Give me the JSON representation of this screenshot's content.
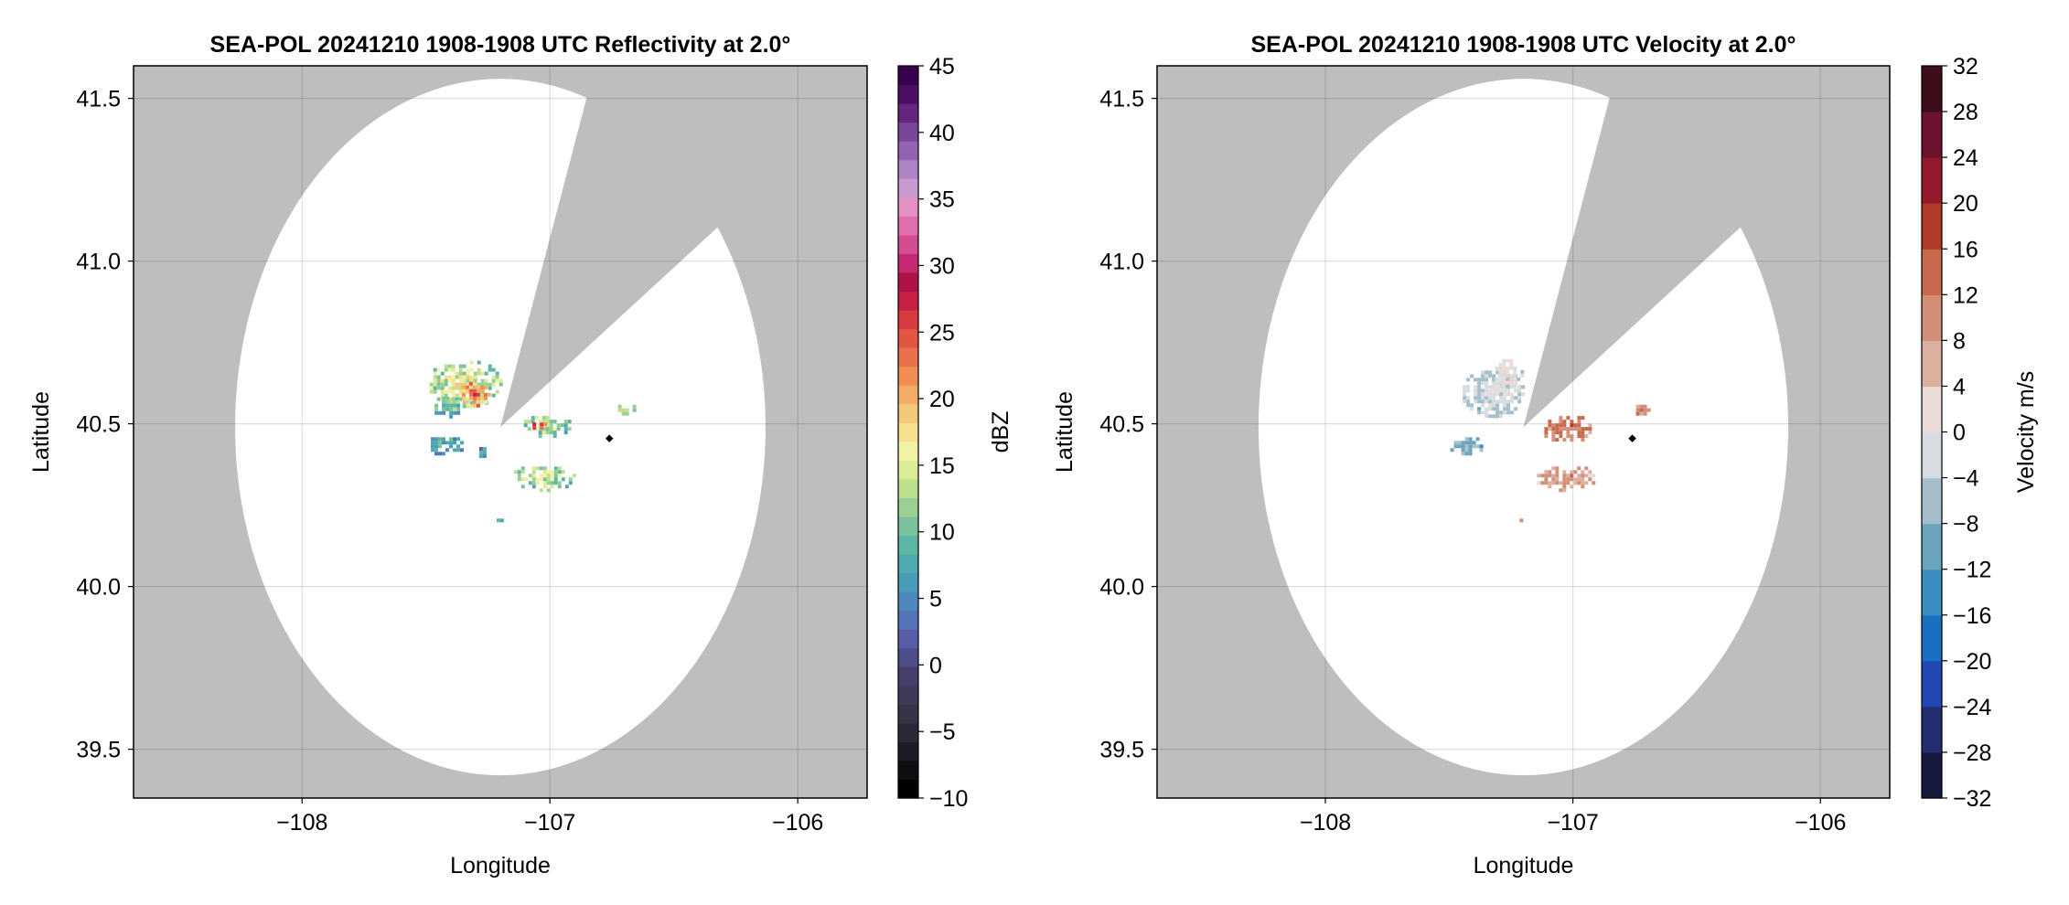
{
  "chart_data": [
    {
      "type": "heatmap",
      "title": "SEA-POL 20241210 1908-1908 UTC Reflectivity at 2.0°",
      "xlabel": "Longitude",
      "ylabel": "Latitude",
      "xlim": [
        -108.68,
        -105.72
      ],
      "ylim": [
        39.35,
        41.6
      ],
      "xticks": [
        -108,
        -107,
        -106
      ],
      "xtick_labels": [
        "−108",
        "−107",
        "−106"
      ],
      "yticks": [
        39.5,
        40.0,
        40.5,
        41.0,
        41.5
      ],
      "ytick_labels": [
        "39.5",
        "40.0",
        "40.5",
        "41.0",
        "41.5"
      ],
      "grid": true,
      "background_color": "#bebebe",
      "coverage_color": "#ffffff",
      "radar_center": {
        "lon": -107.2,
        "lat": 40.49
      },
      "coverage_radius_deg": 1.07,
      "blocked_sector_bearings_deg": [
        19,
        55
      ],
      "marker": {
        "lon": -106.76,
        "lat": 40.455
      },
      "colorbar": {
        "label": "dBZ",
        "min": -10,
        "max": 45,
        "ticks": [
          -10,
          -5,
          0,
          5,
          10,
          15,
          20,
          25,
          30,
          35,
          40,
          45
        ],
        "tick_labels": [
          "−10",
          "−5",
          "0",
          "5",
          "10",
          "15",
          "20",
          "25",
          "30",
          "35",
          "40",
          "45"
        ],
        "colors": [
          "#000000",
          "#0d0d12",
          "#1c1b26",
          "#2a2936",
          "#363446",
          "#3e3a58",
          "#463f6e",
          "#4e4c8a",
          "#5a5ea8",
          "#5673b8",
          "#4e88bc",
          "#4a9bb8",
          "#4caab0",
          "#5db5a4",
          "#7bc29c",
          "#9bd094",
          "#bde08e",
          "#dbec96",
          "#f2f2a6",
          "#f6e08e",
          "#f5c778",
          "#f3ac64",
          "#ef8d52",
          "#e9704a",
          "#e25542",
          "#d83b40",
          "#c81f44",
          "#ad1348",
          "#c32a72",
          "#d44c92",
          "#e070ab",
          "#e590c4",
          "#c99ad2",
          "#ae84c6",
          "#9163b0",
          "#7a4699",
          "#63257f",
          "#4b0e63",
          "#36024e"
        ]
      },
      "echo_cells": [
        {
          "lon": -107.35,
          "lat": 40.63,
          "rlon": 0.15,
          "rlat": 0.075,
          "value": 12
        },
        {
          "lon": -107.31,
          "lat": 40.6,
          "rlon": 0.06,
          "rlat": 0.04,
          "value": 20
        },
        {
          "lon": -107.42,
          "lat": 40.56,
          "rlon": 0.06,
          "rlat": 0.035,
          "value": 8
        },
        {
          "lon": -107.02,
          "lat": 40.5,
          "rlon": 0.1,
          "rlat": 0.035,
          "value": 10
        },
        {
          "lon": -107.05,
          "lat": 40.5,
          "rlon": 0.035,
          "rlat": 0.015,
          "value": 25
        },
        {
          "lon": -107.43,
          "lat": 40.44,
          "rlon": 0.08,
          "rlat": 0.03,
          "value": 5
        },
        {
          "lon": -107.03,
          "lat": 40.34,
          "rlon": 0.13,
          "rlat": 0.04,
          "value": 11
        },
        {
          "lon": -106.7,
          "lat": 40.55,
          "rlon": 0.04,
          "rlat": 0.02,
          "value": 13
        },
        {
          "lon": -107.21,
          "lat": 40.21,
          "rlon": 0.02,
          "rlat": 0.01,
          "value": 9
        },
        {
          "lon": -107.28,
          "lat": 40.42,
          "rlon": 0.02,
          "rlat": 0.02,
          "value": 4
        }
      ]
    },
    {
      "type": "heatmap",
      "title": "SEA-POL 20241210 1908-1908 UTC Velocity at 2.0°",
      "xlabel": "Longitude",
      "ylabel": "Latitude",
      "xlim": [
        -108.68,
        -105.72
      ],
      "ylim": [
        39.35,
        41.6
      ],
      "xticks": [
        -108,
        -107,
        -106
      ],
      "xtick_labels": [
        "−108",
        "−107",
        "−106"
      ],
      "yticks": [
        39.5,
        40.0,
        40.5,
        41.0,
        41.5
      ],
      "ytick_labels": [
        "39.5",
        "40.0",
        "40.5",
        "41.0",
        "41.5"
      ],
      "grid": true,
      "background_color": "#bebebe",
      "coverage_color": "#ffffff",
      "radar_center": {
        "lon": -107.2,
        "lat": 40.49
      },
      "coverage_radius_deg": 1.07,
      "blocked_sector_bearings_deg": [
        19,
        55
      ],
      "marker": {
        "lon": -106.76,
        "lat": 40.455
      },
      "colorbar": {
        "label": "Velocity m/s",
        "min": -32,
        "max": 32,
        "ticks": [
          -32,
          -28,
          -24,
          -20,
          -16,
          -12,
          -8,
          -4,
          0,
          4,
          8,
          12,
          16,
          20,
          24,
          28,
          32
        ],
        "tick_labels": [
          "−32",
          "−28",
          "−24",
          "−20",
          "−16",
          "−12",
          "−8",
          "−4",
          "0",
          "4",
          "8",
          "12",
          "16",
          "20",
          "24",
          "28",
          "32"
        ],
        "colors": [
          "#16183d",
          "#232e70",
          "#2347b0",
          "#1a6fc0",
          "#3a8ec0",
          "#6aa3bc",
          "#a4bfc9",
          "#d6dcdf",
          "#ebdcd9",
          "#dbb0a0",
          "#d38e77",
          "#c76a4c",
          "#b03c28",
          "#931a2c",
          "#6f1230",
          "#3e0d1a"
        ]
      },
      "echo_cells": [
        {
          "lon": -107.33,
          "lat": 40.6,
          "rlon": 0.13,
          "rlat": 0.075,
          "value": -5
        },
        {
          "lon": -107.27,
          "lat": 40.66,
          "rlon": 0.06,
          "rlat": 0.05,
          "value": -2
        },
        {
          "lon": -107.43,
          "lat": 40.44,
          "rlon": 0.08,
          "rlat": 0.03,
          "value": -10
        },
        {
          "lon": -107.03,
          "lat": 40.49,
          "rlon": 0.1,
          "rlat": 0.045,
          "value": 10
        },
        {
          "lon": -107.03,
          "lat": 40.34,
          "rlon": 0.13,
          "rlat": 0.04,
          "value": 6
        },
        {
          "lon": -106.73,
          "lat": 40.55,
          "rlon": 0.03,
          "rlat": 0.02,
          "value": 9
        },
        {
          "lon": -107.21,
          "lat": 40.21,
          "rlon": 0.02,
          "rlat": 0.01,
          "value": 2
        }
      ]
    }
  ]
}
